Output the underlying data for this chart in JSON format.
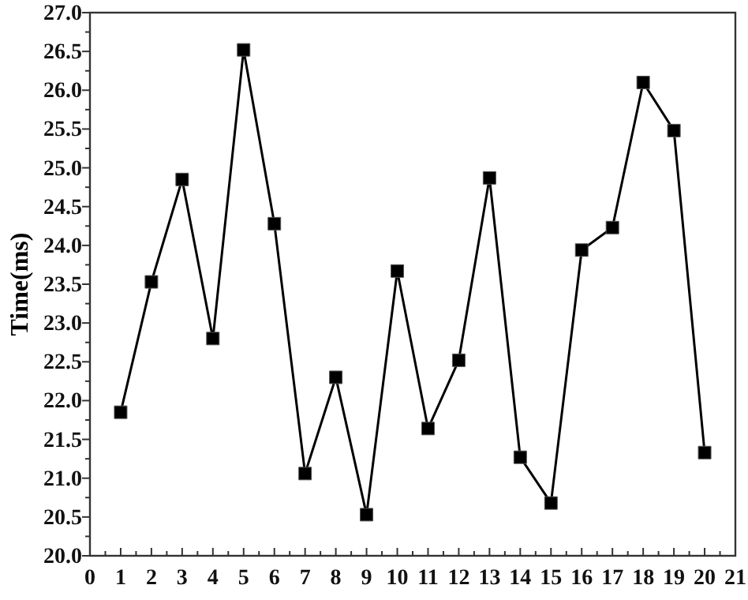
{
  "chart_data": {
    "type": "line",
    "ylabel": "Time(ms)",
    "marker": "square",
    "line_style": "solid",
    "x": [
      1,
      2,
      3,
      4,
      5,
      6,
      7,
      8,
      9,
      10,
      11,
      12,
      13,
      14,
      15,
      16,
      17,
      18,
      19,
      20
    ],
    "series": [
      {
        "color": "#000000",
        "values": [
          21.85,
          23.53,
          24.85,
          22.8,
          26.52,
          24.28,
          21.06,
          22.3,
          20.53,
          23.67,
          21.64,
          22.52,
          24.87,
          21.27,
          20.68,
          23.94,
          24.23,
          26.1,
          25.48,
          21.33
        ]
      }
    ],
    "xlim": [
      0,
      21
    ],
    "xticks": [
      0,
      {
        "value": 0.5,
        "label": null
      },
      1,
      {
        "value": 1.5,
        "label": null
      },
      2,
      {
        "value": 2.5,
        "label": null
      },
      3,
      {
        "value": 3.5,
        "label": null
      },
      4,
      {
        "value": 4.5,
        "label": null
      },
      5,
      {
        "value": 5.5,
        "label": null
      },
      6,
      {
        "value": 6.5,
        "label": null
      },
      7,
      {
        "value": 7.5,
        "label": null
      },
      8,
      {
        "value": 8.5,
        "label": null
      },
      9,
      {
        "value": 9.5,
        "label": null
      },
      10,
      {
        "value": 10.5,
        "label": null
      },
      11,
      {
        "value": 11.5,
        "label": null
      },
      12,
      {
        "value": 12.5,
        "label": null
      },
      13,
      {
        "value": 13.5,
        "label": null
      },
      14,
      {
        "value": 14.5,
        "label": null
      },
      15,
      {
        "value": 15.5,
        "label": null
      },
      16,
      {
        "value": 16.5,
        "label": null
      },
      17,
      {
        "value": 17.5,
        "label": null
      },
      18,
      {
        "value": 18.5,
        "label": null
      },
      19,
      {
        "value": 19.5,
        "label": null
      },
      20,
      {
        "value": 20.5,
        "label": null
      },
      21
    ],
    "ylim": [
      20,
      27
    ],
    "yticks": [
      {
        "value": 20,
        "label": "20.0"
      },
      {
        "value": 20.25,
        "label": null
      },
      {
        "value": 20.5,
        "label": "20.5"
      },
      {
        "value": 20.75,
        "label": null
      },
      {
        "value": 21,
        "label": "21.0"
      },
      {
        "value": 21.25,
        "label": null
      },
      {
        "value": 21.5,
        "label": "21.5"
      },
      {
        "value": 21.75,
        "label": null
      },
      {
        "value": 22,
        "label": "22.0"
      },
      {
        "value": 22.25,
        "label": null
      },
      {
        "value": 22.5,
        "label": "22.5"
      },
      {
        "value": 22.75,
        "label": null
      },
      {
        "value": 23,
        "label": "23.0"
      },
      {
        "value": 23.25,
        "label": null
      },
      {
        "value": 23.5,
        "label": "23.5"
      },
      {
        "value": 23.75,
        "label": null
      },
      {
        "value": 24,
        "label": "24.0"
      },
      {
        "value": 24.25,
        "label": null
      },
      {
        "value": 24.5,
        "label": "24.5"
      },
      {
        "value": 24.75,
        "label": null
      },
      {
        "value": 25,
        "label": "25.0"
      },
      {
        "value": 25.25,
        "label": null
      },
      {
        "value": 25.5,
        "label": "25.5"
      },
      {
        "value": 25.75,
        "label": null
      },
      {
        "value": 26,
        "label": "26.0"
      },
      {
        "value": 26.25,
        "label": null
      },
      {
        "value": 26.5,
        "label": "26.5"
      },
      {
        "value": 26.75,
        "label": null
      },
      {
        "value": 27,
        "label": "27.0"
      }
    ]
  }
}
